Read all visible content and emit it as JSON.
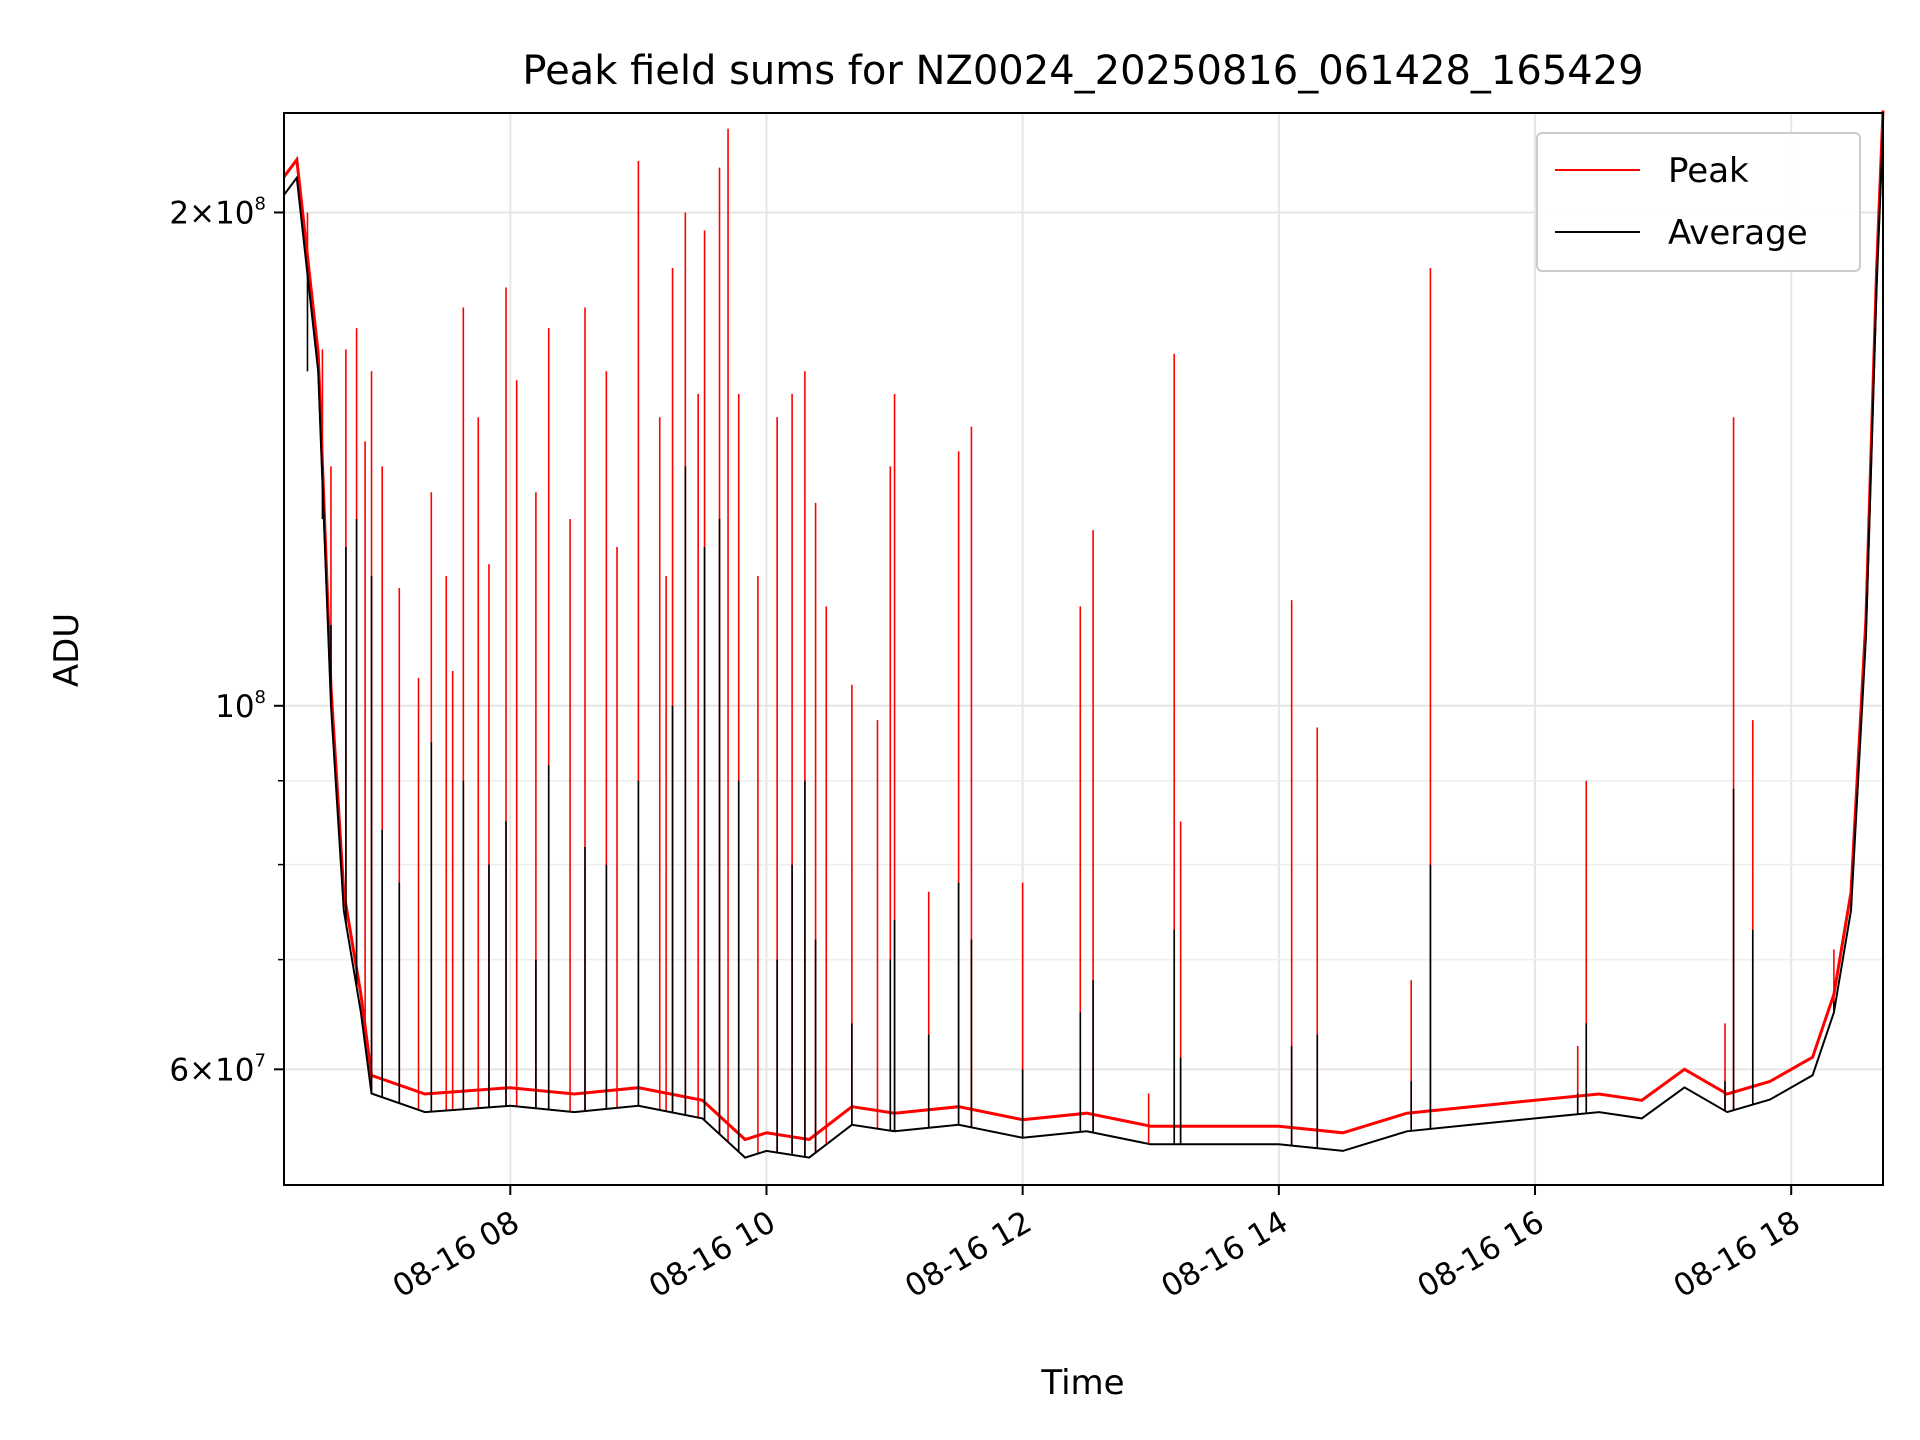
{
  "chart_data": {
    "type": "line",
    "title": "Peak field sums for NZ0024_20250816_061428_165429",
    "xlabel": "Time",
    "ylabel": "ADU",
    "x_range": [
      "2025-08-16 06:14",
      "2025-08-16 18:43"
    ],
    "y_scale": "log",
    "ylim": [
      51000000,
      230000000
    ],
    "grid": true,
    "legend_position": "top-right",
    "x_ticks": [
      {
        "value": "2025-08-16 08:00",
        "label": "08-16 08"
      },
      {
        "value": "2025-08-16 10:00",
        "label": "08-16 10"
      },
      {
        "value": "2025-08-16 12:00",
        "label": "08-16 12"
      },
      {
        "value": "2025-08-16 14:00",
        "label": "08-16 14"
      },
      {
        "value": "2025-08-16 16:00",
        "label": "08-16 16"
      },
      {
        "value": "2025-08-16 18:00",
        "label": "08-16 18"
      }
    ],
    "y_ticks": [
      {
        "value": 200000000,
        "mantissa": "2",
        "exp": "8"
      },
      {
        "value": 100000000,
        "mantissa": "",
        "exp": "8"
      },
      {
        "value": 60000000,
        "mantissa": "6",
        "exp": "7"
      }
    ],
    "y_minor_ticks": [
      70000000,
      80000000,
      90000000,
      50000000
    ],
    "baseline": [
      [
        "2025-08-16 06:14",
        205000000
      ],
      [
        "2025-08-16 06:20",
        210000000
      ],
      [
        "2025-08-16 06:30",
        160000000
      ],
      [
        "2025-08-16 06:36",
        100000000
      ],
      [
        "2025-08-16 06:42",
        75000000
      ],
      [
        "2025-08-16 06:50",
        65000000
      ],
      [
        "2025-08-16 06:55",
        58000000
      ],
      [
        "2025-08-16 07:20",
        56500000
      ],
      [
        "2025-08-16 08:00",
        57000000
      ],
      [
        "2025-08-16 08:30",
        56500000
      ],
      [
        "2025-08-16 09:00",
        57000000
      ],
      [
        "2025-08-16 09:30",
        56000000
      ],
      [
        "2025-08-16 09:50",
        53000000
      ],
      [
        "2025-08-16 10:00",
        53500000
      ],
      [
        "2025-08-16 10:20",
        53000000
      ],
      [
        "2025-08-16 10:40",
        55500000
      ],
      [
        "2025-08-16 11:00",
        55000000
      ],
      [
        "2025-08-16 11:30",
        55500000
      ],
      [
        "2025-08-16 12:00",
        54500000
      ],
      [
        "2025-08-16 12:30",
        55000000
      ],
      [
        "2025-08-16 13:00",
        54000000
      ],
      [
        "2025-08-16 13:30",
        54000000
      ],
      [
        "2025-08-16 14:00",
        54000000
      ],
      [
        "2025-08-16 14:30",
        53500000
      ],
      [
        "2025-08-16 15:00",
        55000000
      ],
      [
        "2025-08-16 15:30",
        55500000
      ],
      [
        "2025-08-16 16:00",
        56000000
      ],
      [
        "2025-08-16 16:30",
        56500000
      ],
      [
        "2025-08-16 16:50",
        56000000
      ],
      [
        "2025-08-16 17:10",
        58500000
      ],
      [
        "2025-08-16 17:30",
        56500000
      ],
      [
        "2025-08-16 17:50",
        57500000
      ],
      [
        "2025-08-16 18:10",
        59500000
      ],
      [
        "2025-08-16 18:20",
        65000000
      ],
      [
        "2025-08-16 18:28",
        75000000
      ],
      [
        "2025-08-16 18:35",
        110000000
      ],
      [
        "2025-08-16 18:40",
        180000000
      ],
      [
        "2025-08-16 18:43",
        225000000
      ]
    ],
    "series": [
      {
        "name": "Peak",
        "color": "#ff0000",
        "spikes": [
          [
            "2025-08-16 06:25",
            200000000
          ],
          [
            "2025-08-16 06:28",
            170000000
          ],
          [
            "2025-08-16 06:32",
            165000000
          ],
          [
            "2025-08-16 06:36",
            140000000
          ],
          [
            "2025-08-16 06:43",
            165000000
          ],
          [
            "2025-08-16 06:48",
            170000000
          ],
          [
            "2025-08-16 06:52",
            145000000
          ],
          [
            "2025-08-16 06:55",
            160000000
          ],
          [
            "2025-08-16 07:00",
            140000000
          ],
          [
            "2025-08-16 07:08",
            118000000
          ],
          [
            "2025-08-16 07:17",
            104000000
          ],
          [
            "2025-08-16 07:23",
            135000000
          ],
          [
            "2025-08-16 07:30",
            120000000
          ],
          [
            "2025-08-16 07:33",
            105000000
          ],
          [
            "2025-08-16 07:38",
            175000000
          ],
          [
            "2025-08-16 07:45",
            150000000
          ],
          [
            "2025-08-16 07:50",
            122000000
          ],
          [
            "2025-08-16 07:58",
            180000000
          ],
          [
            "2025-08-16 08:03",
            158000000
          ],
          [
            "2025-08-16 08:12",
            135000000
          ],
          [
            "2025-08-16 08:18",
            170000000
          ],
          [
            "2025-08-16 08:28",
            130000000
          ],
          [
            "2025-08-16 08:35",
            175000000
          ],
          [
            "2025-08-16 08:45",
            160000000
          ],
          [
            "2025-08-16 08:50",
            125000000
          ],
          [
            "2025-08-16 09:00",
            215000000
          ],
          [
            "2025-08-16 09:10",
            150000000
          ],
          [
            "2025-08-16 09:13",
            120000000
          ],
          [
            "2025-08-16 09:16",
            185000000
          ],
          [
            "2025-08-16 09:22",
            200000000
          ],
          [
            "2025-08-16 09:28",
            155000000
          ],
          [
            "2025-08-16 09:31",
            195000000
          ],
          [
            "2025-08-16 09:38",
            213000000
          ],
          [
            "2025-08-16 09:42",
            225000000
          ],
          [
            "2025-08-16 09:47",
            155000000
          ],
          [
            "2025-08-16 09:56",
            120000000
          ],
          [
            "2025-08-16 10:05",
            150000000
          ],
          [
            "2025-08-16 10:12",
            155000000
          ],
          [
            "2025-08-16 10:18",
            160000000
          ],
          [
            "2025-08-16 10:23",
            133000000
          ],
          [
            "2025-08-16 10:28",
            115000000
          ],
          [
            "2025-08-16 10:40",
            103000000
          ],
          [
            "2025-08-16 10:52",
            98000000
          ],
          [
            "2025-08-16 10:58",
            140000000
          ],
          [
            "2025-08-16 11:00",
            155000000
          ],
          [
            "2025-08-16 11:16",
            77000000
          ],
          [
            "2025-08-16 11:30",
            143000000
          ],
          [
            "2025-08-16 11:36",
            148000000
          ],
          [
            "2025-08-16 12:00",
            78000000
          ],
          [
            "2025-08-16 12:27",
            115000000
          ],
          [
            "2025-08-16 12:33",
            128000000
          ],
          [
            "2025-08-16 12:59",
            58000000
          ],
          [
            "2025-08-16 13:11",
            164000000
          ],
          [
            "2025-08-16 13:14",
            85000000
          ],
          [
            "2025-08-16 14:06",
            116000000
          ],
          [
            "2025-08-16 14:18",
            97000000
          ],
          [
            "2025-08-16 15:02",
            68000000
          ],
          [
            "2025-08-16 15:11",
            185000000
          ],
          [
            "2025-08-16 16:20",
            62000000
          ],
          [
            "2025-08-16 16:24",
            90000000
          ],
          [
            "2025-08-16 17:29",
            64000000
          ],
          [
            "2025-08-16 17:33",
            150000000
          ],
          [
            "2025-08-16 17:42",
            98000000
          ],
          [
            "2025-08-16 18:20",
            71000000
          ]
        ]
      },
      {
        "name": "Average",
        "color": "#000000",
        "spikes": [
          [
            "2025-08-16 06:25",
            160000000
          ],
          [
            "2025-08-16 06:32",
            130000000
          ],
          [
            "2025-08-16 06:36",
            112000000
          ],
          [
            "2025-08-16 06:43",
            125000000
          ],
          [
            "2025-08-16 06:48",
            130000000
          ],
          [
            "2025-08-16 06:55",
            120000000
          ],
          [
            "2025-08-16 07:00",
            84000000
          ],
          [
            "2025-08-16 07:08",
            78000000
          ],
          [
            "2025-08-16 07:23",
            95000000
          ],
          [
            "2025-08-16 07:38",
            90000000
          ],
          [
            "2025-08-16 07:50",
            80000000
          ],
          [
            "2025-08-16 07:58",
            85000000
          ],
          [
            "2025-08-16 08:12",
            70000000
          ],
          [
            "2025-08-16 08:18",
            92000000
          ],
          [
            "2025-08-16 08:35",
            82000000
          ],
          [
            "2025-08-16 08:45",
            80000000
          ],
          [
            "2025-08-16 09:00",
            90000000
          ],
          [
            "2025-08-16 09:16",
            100000000
          ],
          [
            "2025-08-16 09:22",
            140000000
          ],
          [
            "2025-08-16 09:31",
            125000000
          ],
          [
            "2025-08-16 09:38",
            130000000
          ],
          [
            "2025-08-16 09:47",
            90000000
          ],
          [
            "2025-08-16 10:05",
            70000000
          ],
          [
            "2025-08-16 10:12",
            80000000
          ],
          [
            "2025-08-16 10:18",
            90000000
          ],
          [
            "2025-08-16 10:23",
            72000000
          ],
          [
            "2025-08-16 10:40",
            64000000
          ],
          [
            "2025-08-16 10:58",
            70000000
          ],
          [
            "2025-08-16 11:00",
            74000000
          ],
          [
            "2025-08-16 11:16",
            63000000
          ],
          [
            "2025-08-16 11:30",
            78000000
          ],
          [
            "2025-08-16 11:36",
            72000000
          ],
          [
            "2025-08-16 12:00",
            60000000
          ],
          [
            "2025-08-16 12:27",
            65000000
          ],
          [
            "2025-08-16 12:33",
            68000000
          ],
          [
            "2025-08-16 13:11",
            73000000
          ],
          [
            "2025-08-16 13:14",
            61000000
          ],
          [
            "2025-08-16 14:06",
            62000000
          ],
          [
            "2025-08-16 14:18",
            63000000
          ],
          [
            "2025-08-16 15:02",
            59000000
          ],
          [
            "2025-08-16 15:11",
            80000000
          ],
          [
            "2025-08-16 16:20",
            58000000
          ],
          [
            "2025-08-16 16:24",
            64000000
          ],
          [
            "2025-08-16 17:29",
            59000000
          ],
          [
            "2025-08-16 17:33",
            89000000
          ],
          [
            "2025-08-16 17:42",
            73000000
          ],
          [
            "2025-08-16 18:20",
            66000000
          ]
        ]
      }
    ]
  }
}
